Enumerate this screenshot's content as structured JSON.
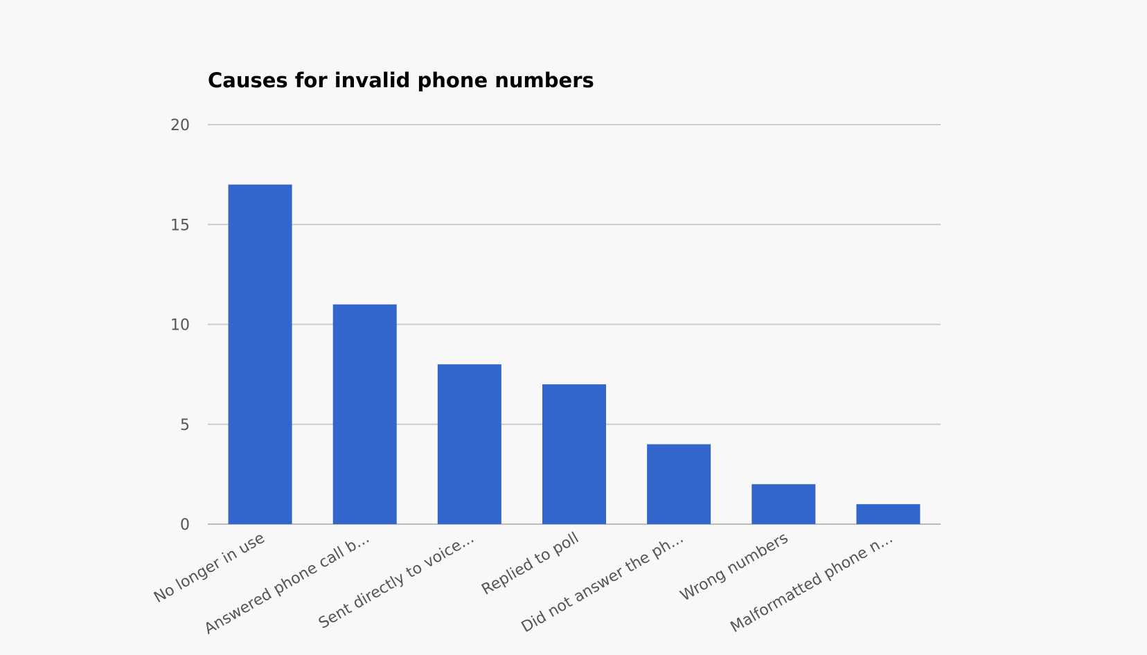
{
  "chart_data": {
    "type": "bar",
    "title": "Causes for invalid phone numbers",
    "xlabel": "",
    "ylabel": "",
    "categories": [
      "No longer in use",
      "Answered phone call b...",
      "Sent directly to voice...",
      "Replied to poll",
      "Did not answer the ph...",
      "Wrong numbers",
      "Malformatted phone n..."
    ],
    "values": [
      17,
      11,
      8,
      7,
      4,
      2,
      1
    ],
    "ylim": [
      0,
      20
    ],
    "yticks": [
      0,
      5,
      10,
      15,
      20
    ],
    "grid": true,
    "legend": "none",
    "bar_color": "#3366cc"
  }
}
